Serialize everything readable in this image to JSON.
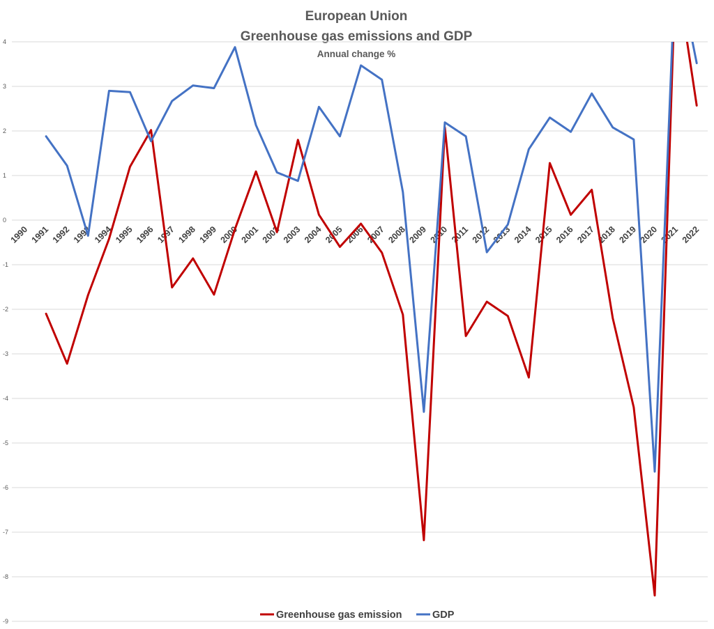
{
  "chart_data": {
    "type": "line",
    "title": "European Union",
    "subtitle": "Greenhouse gas emissions and GDP",
    "subtitle2": "Annual change %",
    "ylim": [
      -9,
      4
    ],
    "yticks": [
      "4",
      "3",
      "2",
      "1",
      "0",
      "-1",
      "-2",
      "-3",
      "-4",
      "-5",
      "-6",
      "-7",
      "-8",
      "-9"
    ],
    "categories": [
      "1990",
      "1991",
      "1992",
      "1993",
      "1994",
      "1995",
      "1996",
      "1997",
      "1998",
      "1999",
      "2000",
      "2001",
      "2002",
      "2003",
      "2004",
      "2005",
      "2006",
      "2007",
      "2008",
      "2009",
      "2010",
      "2011",
      "2012",
      "2013",
      "2014",
      "2015",
      "2016",
      "2017",
      "2018",
      "2019",
      "2020",
      "2021",
      "2022"
    ],
    "grid": true,
    "legend_position": "bottom",
    "series": [
      {
        "name": "Greenhouse gas emission",
        "color": "#C00000",
        "values": [
          null,
          -2.1,
          -3.22,
          -1.68,
          -0.42,
          1.2,
          2.02,
          -1.51,
          -0.86,
          -1.67,
          -0.2,
          1.09,
          -0.27,
          1.8,
          0.12,
          -0.6,
          -0.08,
          -0.73,
          -2.12,
          -7.18,
          2.08,
          -2.6,
          -1.83,
          -2.15,
          -3.53,
          1.28,
          0.12,
          0.68,
          -2.2,
          -4.2,
          -8.42,
          5.7,
          2.57
        ]
      },
      {
        "name": "GDP",
        "color": "#4472C4",
        "values": [
          null,
          1.88,
          1.22,
          -0.35,
          2.9,
          2.87,
          1.77,
          2.67,
          3.02,
          2.96,
          3.88,
          2.13,
          1.07,
          0.88,
          2.54,
          1.88,
          3.47,
          3.15,
          0.63,
          -4.3,
          2.19,
          1.88,
          -0.72,
          -0.1,
          1.59,
          2.3,
          1.98,
          2.84,
          2.08,
          1.81,
          -5.64,
          5.9,
          3.52
        ]
      }
    ]
  }
}
